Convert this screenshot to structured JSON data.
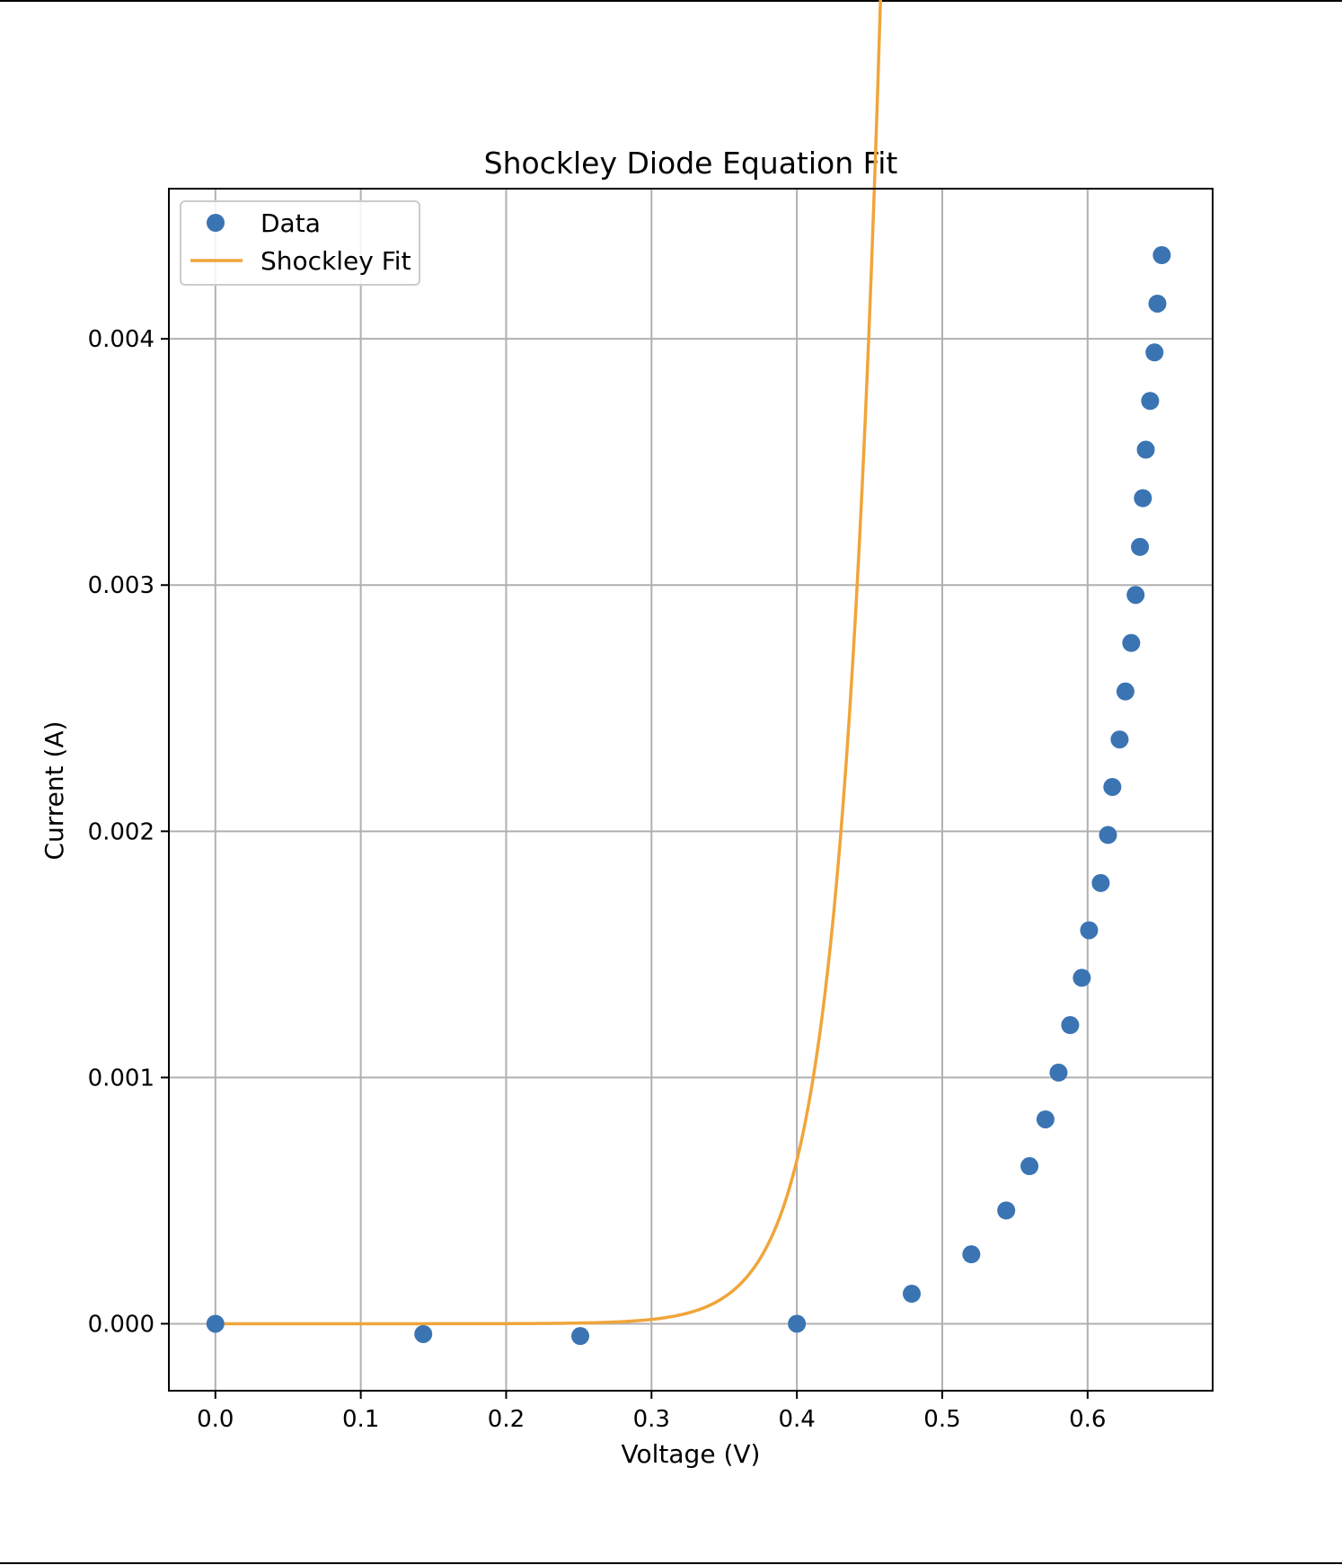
{
  "chart_data": {
    "type": "scatter",
    "title": "Shockley Diode Equation Fit",
    "xlabel": "Voltage (V)",
    "ylabel": "Current (A)",
    "xlim": [
      -0.032,
      0.686
    ],
    "ylim": [
      -0.000272,
      0.00461
    ],
    "grid": true,
    "legend_position": "top-left",
    "xticks": [
      0.0,
      0.1,
      0.2,
      0.3,
      0.4,
      0.5,
      0.6
    ],
    "xtick_labels": [
      "0.0",
      "0.1",
      "0.2",
      "0.3",
      "0.4",
      "0.5",
      "0.6"
    ],
    "yticks": [
      0.0,
      0.001,
      0.002,
      0.003,
      0.004
    ],
    "ytick_labels": [
      "0.000",
      "0.001",
      "0.002",
      "0.003",
      "0.004"
    ],
    "series": [
      {
        "name": "Data",
        "kind": "scatter",
        "color": "#3a74b3",
        "points": [
          [
            0.0,
            0.0
          ],
          [
            0.143,
            -4.2e-05
          ],
          [
            0.251,
            -5e-05
          ],
          [
            0.4,
            0.0
          ],
          [
            0.479,
            0.000122
          ],
          [
            0.52,
            0.000282
          ],
          [
            0.544,
            0.00046
          ],
          [
            0.56,
            0.00064
          ],
          [
            0.571,
            0.00083
          ],
          [
            0.58,
            0.00102
          ],
          [
            0.588,
            0.001213
          ],
          [
            0.596,
            0.001405
          ],
          [
            0.601,
            0.001598
          ],
          [
            0.609,
            0.00179
          ],
          [
            0.614,
            0.001985
          ],
          [
            0.617,
            0.00218
          ],
          [
            0.622,
            0.002373
          ],
          [
            0.626,
            0.002568
          ],
          [
            0.63,
            0.002765
          ],
          [
            0.633,
            0.00296
          ],
          [
            0.636,
            0.003155
          ],
          [
            0.638,
            0.003353
          ],
          [
            0.64,
            0.00355
          ],
          [
            0.643,
            0.003748
          ],
          [
            0.646,
            0.003945
          ],
          [
            0.648,
            0.004143
          ],
          [
            0.651,
            0.00434
          ]
        ]
      },
      {
        "name": "Shockley Fit",
        "kind": "line",
        "color": "#f0a53a",
        "model": {
          "equation": "I = Is * (exp(V / Vt) - 1)",
          "Is": 3.2e-10,
          "Vt": 0.0275,
          "v_start": 0.0,
          "v_end": 0.651
        }
      }
    ]
  }
}
